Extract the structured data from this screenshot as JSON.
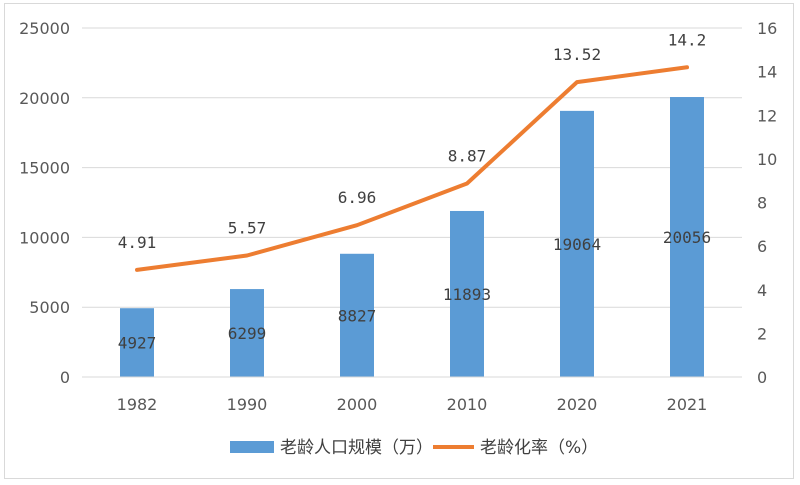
{
  "chart_data": {
    "type": "bar+line",
    "categories": [
      "1982",
      "1990",
      "2000",
      "2010",
      "2020",
      "2021"
    ],
    "series": [
      {
        "name": "老龄人口规模（万）",
        "type": "bar",
        "axis": "left",
        "color": "#5b9bd5",
        "values": [
          4927,
          6299,
          8827,
          11893,
          19064,
          20056
        ],
        "labels": [
          "4927",
          "6299",
          "8827",
          "11893",
          "19064",
          "20056"
        ]
      },
      {
        "name": "老龄化率（%）",
        "type": "line",
        "axis": "right",
        "color": "#ed7d31",
        "values": [
          4.91,
          5.57,
          6.96,
          8.87,
          13.52,
          14.2
        ],
        "labels": [
          "4.91",
          "5.57",
          "6.96",
          "8.87",
          "13.52",
          "14.2"
        ]
      }
    ],
    "y_left": {
      "min": 0,
      "max": 25000,
      "ticks": [
        "0",
        "5000",
        "10000",
        "15000",
        "20000",
        "25000"
      ]
    },
    "y_right": {
      "min": 0,
      "max": 16,
      "ticks": [
        "0",
        "2",
        "4",
        "6",
        "8",
        "10",
        "12",
        "14",
        "16"
      ]
    },
    "grid": true,
    "legend_position": "bottom"
  }
}
